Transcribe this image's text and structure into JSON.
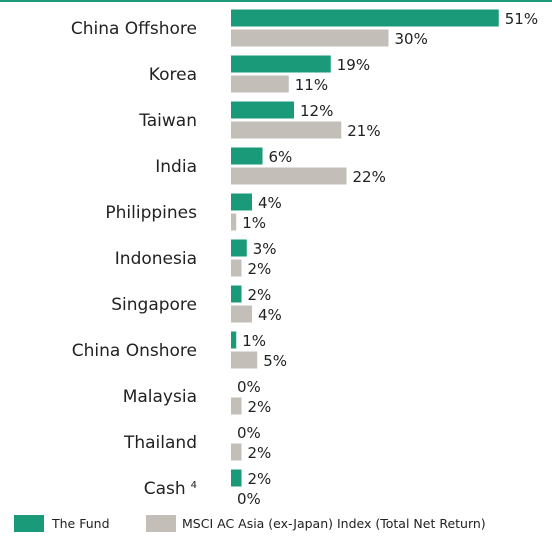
{
  "chart_data": {
    "type": "bar",
    "orientation": "horizontal",
    "categories": [
      "China Offshore",
      "Korea",
      "Taiwan",
      "India",
      "Philippines",
      "Indonesia",
      "Singapore",
      "China Onshore",
      "Malaysia",
      "Thailand",
      "Cash"
    ],
    "category_superscripts": {
      "Cash": "4"
    },
    "series": [
      {
        "name": "The Fund",
        "color": "#1a9a78",
        "values": [
          51,
          19,
          12,
          6,
          4,
          3,
          2,
          1,
          0,
          0,
          2
        ],
        "labels": [
          "51%",
          "19%",
          "12%",
          "6%",
          "4%",
          "3%",
          "2%",
          "1%",
          "0%",
          "0%",
          "2%"
        ]
      },
      {
        "name": "MSCI AC Asia (ex-Japan) Index (Total Net Return)",
        "color": "#c3bfb8",
        "values": [
          30,
          11,
          21,
          22,
          1,
          2,
          4,
          5,
          2,
          2,
          0
        ],
        "labels": [
          "30%",
          "11%",
          "21%",
          "22%",
          "1%",
          "2%",
          "4%",
          "5%",
          "2%",
          "2%",
          "0%"
        ]
      }
    ],
    "xlim": [
      0,
      51
    ],
    "grid": false,
    "legend_position": "bottom",
    "top_rule_color": "#1a9a78"
  }
}
